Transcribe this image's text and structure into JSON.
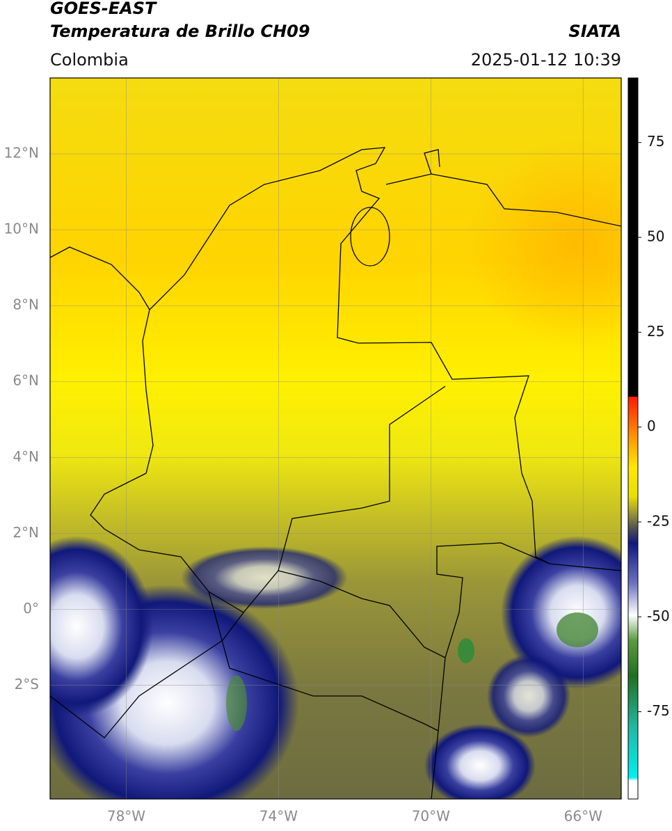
{
  "header": {
    "title": "GOES-EAST",
    "subtitle": "Temperatura de Brillo CH09",
    "source": "SIATA",
    "region": "Colombia",
    "datetime": "2025-01-12 10:39"
  },
  "map": {
    "xlim": [
      -80,
      -65
    ],
    "ylim": [
      -5,
      14
    ],
    "xticks": [
      {
        "value": -78,
        "label": "78°W"
      },
      {
        "value": -74,
        "label": "74°W"
      },
      {
        "value": -70,
        "label": "70°W"
      },
      {
        "value": -66,
        "label": "66°W"
      }
    ],
    "yticks": [
      {
        "value": 12,
        "label": "12°N"
      },
      {
        "value": 10,
        "label": "10°N"
      },
      {
        "value": 8,
        "label": "8°N"
      },
      {
        "value": 6,
        "label": "6°N"
      },
      {
        "value": 4,
        "label": "4°N"
      },
      {
        "value": 2,
        "label": "2°N"
      },
      {
        "value": 0,
        "label": "0°"
      },
      {
        "value": -2,
        "label": "2°S"
      }
    ],
    "grid": true
  },
  "colorbar": {
    "lim": [
      -98,
      92
    ],
    "ticks": [
      75,
      50,
      25,
      0,
      -25,
      -50,
      -75
    ]
  }
}
